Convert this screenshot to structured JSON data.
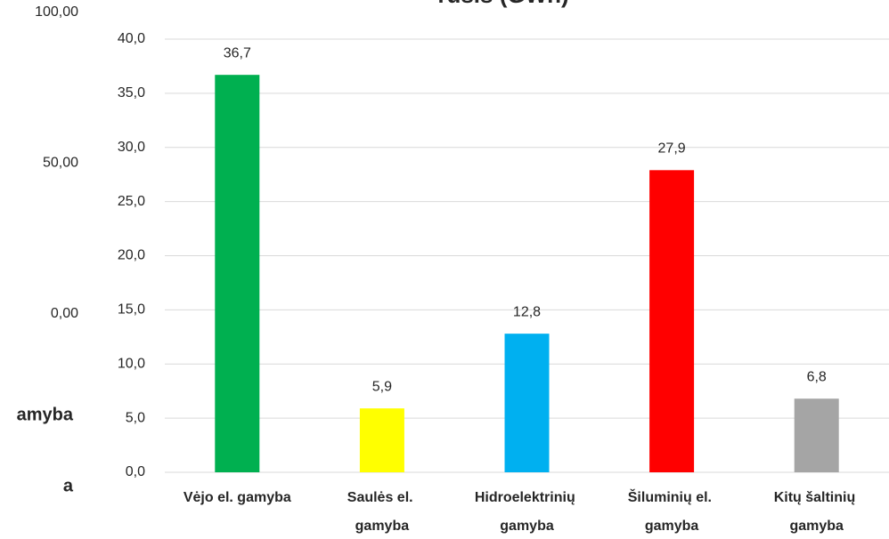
{
  "chart_data": [
    {
      "type": "bar",
      "title": "rūšis (GWh)",
      "categories": [
        "Vėjo el. gamyba",
        "Saulės el. gamyba",
        "Hidroelektrinių gamyba",
        "Šiluminių el. gamyba",
        "Kitų  šaltinių gamyba"
      ],
      "values": [
        36.7,
        5.9,
        12.8,
        27.9,
        6.8
      ],
      "value_labels": [
        "36,7",
        "5,9",
        "12,8",
        "27,9",
        "6,8"
      ],
      "colors": [
        "#00b050",
        "#ffff00",
        "#00b0f0",
        "#ff0000",
        "#a5a5a5"
      ],
      "ylim": [
        0,
        40
      ],
      "yticks": [
        {
          "value": 0,
          "label": "0,0"
        },
        {
          "value": 5,
          "label": "5,0"
        },
        {
          "value": 10,
          "label": "10,0"
        },
        {
          "value": 15,
          "label": "15,0"
        },
        {
          "value": 20,
          "label": "20,0"
        },
        {
          "value": 25,
          "label": "25,0"
        },
        {
          "value": 30,
          "label": "30,0"
        },
        {
          "value": 35,
          "label": "35,0"
        },
        {
          "value": 40,
          "label": "40,0"
        }
      ],
      "grid": true
    },
    {
      "type": "background",
      "categories": [
        "amyba",
        "a"
      ],
      "ylim": [
        0,
        100
      ],
      "yticks": [
        {
          "value": 0,
          "label": "0,00"
        },
        {
          "value": 50,
          "label": "50,00"
        },
        {
          "value": 100,
          "label": "100,00"
        }
      ]
    }
  ]
}
